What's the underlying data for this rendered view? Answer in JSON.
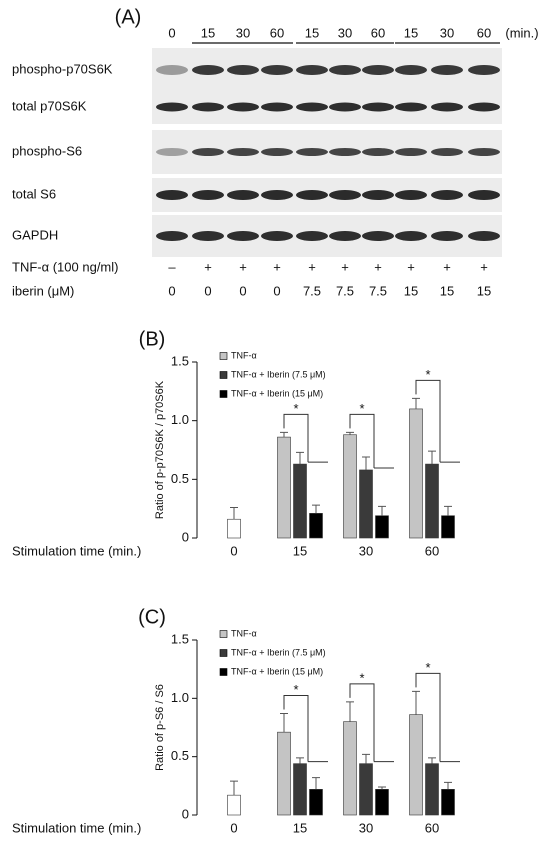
{
  "blot": {
    "panel_label": "(A)",
    "time_labels": [
      "0",
      "15",
      "30",
      "60",
      "15",
      "30",
      "60",
      "15",
      "30",
      "60"
    ],
    "time_unit": "(min.)",
    "rows": [
      "phospho-p70S6K",
      "total p70S6K",
      "phospho-S6",
      "total S6",
      "GAPDH"
    ],
    "treatments": [
      {
        "label": "TNF-α (100 ng/ml)",
        "lanes": [
          "–",
          "+",
          "+",
          "+",
          "+",
          "+",
          "+",
          "+",
          "+",
          "+"
        ]
      },
      {
        "label": "iberin (μM)",
        "lanes": [
          "0",
          "0",
          "0",
          "0",
          "7.5",
          "7.5",
          "7.5",
          "15",
          "15",
          "15"
        ]
      }
    ]
  },
  "chart_data": [
    {
      "type": "bar",
      "panel_label": "(B)",
      "ylabel": "Ratio of p-p70S6K / p70S6K",
      "xlabel": "Stimulation time (min.)",
      "categories": [
        "0",
        "15",
        "30",
        "60"
      ],
      "series": [
        {
          "name": "TNF-α",
          "color": "#c4c4c4",
          "colors": [
            "#ffffff",
            "#c4c4c4",
            "#c4c4c4",
            "#c4c4c4"
          ],
          "values": [
            0.16,
            0.86,
            0.88,
            1.1
          ],
          "errors": [
            0.1,
            0.04,
            0.02,
            0.09
          ]
        },
        {
          "name": "TNF-α + Iberin (7.5 μM)",
          "color": "#3a3a3a",
          "values": [
            null,
            0.63,
            0.58,
            0.63
          ],
          "errors": [
            null,
            0.1,
            0.11,
            0.11
          ]
        },
        {
          "name": "TNF-α + Iberin (15 μM)",
          "color": "#000000",
          "values": [
            null,
            0.21,
            0.19,
            0.19
          ],
          "errors": [
            null,
            0.07,
            0.08,
            0.08
          ]
        }
      ],
      "ylim": [
        0,
        1.5
      ],
      "yticks": [
        0,
        0.5,
        {
          "value": 1,
          "label": "1.0"
        },
        1.5
      ],
      "annotations": [
        "*",
        "*",
        "*"
      ]
    },
    {
      "type": "bar",
      "panel_label": "(C)",
      "ylabel": "Ratio of p-S6 / S6",
      "xlabel": "Stimulation time (min.)",
      "categories": [
        "0",
        "15",
        "30",
        "60"
      ],
      "series": [
        {
          "name": "TNF-α",
          "color": "#c4c4c4",
          "colors": [
            "#ffffff",
            "#c4c4c4",
            "#c4c4c4",
            "#c4c4c4"
          ],
          "values": [
            0.17,
            0.71,
            0.8,
            0.86
          ],
          "errors": [
            0.12,
            0.16,
            0.17,
            0.2
          ]
        },
        {
          "name": "TNF-α + Iberin (7.5 μM)",
          "color": "#3a3a3a",
          "values": [
            null,
            0.44,
            0.44,
            0.44
          ],
          "errors": [
            null,
            0.05,
            0.08,
            0.05
          ]
        },
        {
          "name": "TNF-α + Iberin (15 μM)",
          "color": "#000000",
          "values": [
            null,
            0.22,
            0.22,
            0.22
          ],
          "errors": [
            null,
            0.1,
            0.02,
            0.06
          ]
        }
      ],
      "ylim": [
        0,
        1.5
      ],
      "yticks": [
        0,
        0.5,
        {
          "value": 1,
          "label": "1.0"
        },
        1.5
      ],
      "annotations": [
        "*",
        "*",
        "*"
      ]
    }
  ]
}
